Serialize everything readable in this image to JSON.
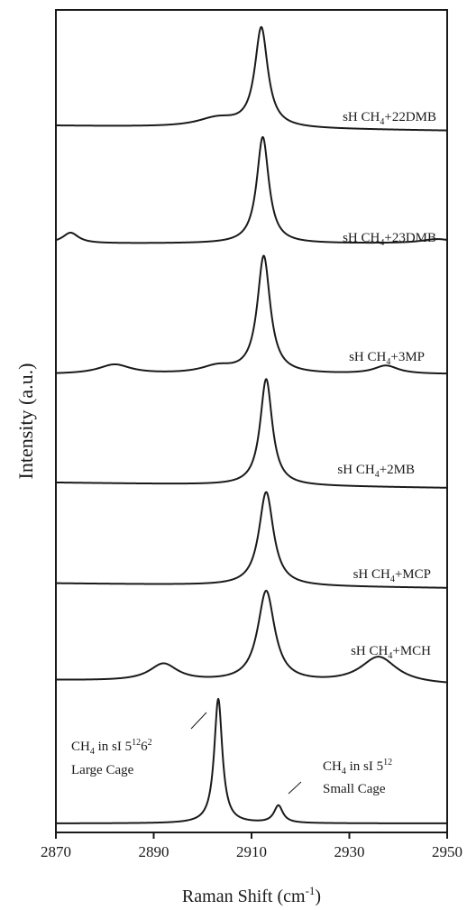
{
  "chart_data": {
    "type": "line",
    "xlabel": "Raman Shift (cm",
    "xlabel_sup": "-1",
    "xlabel_tail": ")",
    "ylabel": "Intensity (a.u.)",
    "xlim": [
      2870,
      2950
    ],
    "x_ticks": [
      "2870",
      "2890",
      "2910",
      "2930",
      "2950"
    ],
    "series": [
      {
        "label_pre": "sH CH",
        "label_sub": "4",
        "label_post": "+22DMB",
        "baseline_left": 0.06,
        "baseline_right": 0.01,
        "peaks": [
          {
            "x": 2912.0,
            "h": 1.0,
            "w": 1.6
          },
          {
            "x": 2903.0,
            "h": 0.09,
            "w": 5.0
          }
        ]
      },
      {
        "label_pre": "sH CH",
        "label_sub": "4",
        "label_post": "+23DMB",
        "baseline_left": 0.0,
        "baseline_right": 0.0,
        "peaks": [
          {
            "x": 2912.3,
            "h": 1.0,
            "w": 1.5
          },
          {
            "x": 2873.0,
            "h": 0.1,
            "w": 2.0
          },
          {
            "x": 2948.0,
            "h": 0.04,
            "w": 4.0
          }
        ]
      },
      {
        "label_pre": "sH CH",
        "label_sub": "4",
        "label_post": "+3MP",
        "baseline_left": 0.0,
        "baseline_right": 0.0,
        "peaks": [
          {
            "x": 2912.5,
            "h": 1.0,
            "w": 1.6
          },
          {
            "x": 2882.0,
            "h": 0.08,
            "w": 4.0
          },
          {
            "x": 2903.0,
            "h": 0.06,
            "w": 4.0
          },
          {
            "x": 2937.5,
            "h": 0.07,
            "w": 3.0
          }
        ]
      },
      {
        "label_pre": "sH CH",
        "label_sub": "4",
        "label_post": "+2MB",
        "baseline_left": 0.05,
        "baseline_right": 0.0,
        "peaks": [
          {
            "x": 2913.0,
            "h": 1.0,
            "w": 1.5
          }
        ]
      },
      {
        "label_pre": "sH CH",
        "label_sub": "4",
        "label_post": "+MCP",
        "baseline_left": 0.05,
        "baseline_right": 0.0,
        "peaks": [
          {
            "x": 2913.0,
            "h": 1.0,
            "w": 1.8
          }
        ]
      },
      {
        "label_pre": "sH CH",
        "label_sub": "4",
        "label_post": "+MCH",
        "baseline_left": 0.1,
        "baseline_right": 0.05,
        "peaks": [
          {
            "x": 2913.0,
            "h": 0.95,
            "w": 2.1
          },
          {
            "x": 2892.0,
            "h": 0.18,
            "w": 3.5
          },
          {
            "x": 2936.0,
            "h": 0.28,
            "w": 4.5
          }
        ]
      },
      {
        "label_pre": "",
        "label_sub": "",
        "label_post": "",
        "baseline_left": 0.0,
        "baseline_right": 0.0,
        "peaks": [
          {
            "x": 2903.2,
            "h": 1.0,
            "w": 1.0
          },
          {
            "x": 2915.5,
            "h": 0.14,
            "w": 1.1
          }
        ]
      }
    ],
    "annotations": [
      {
        "line1_pre": "CH",
        "line1_sub": "4",
        "line1_mid": " in sI 5",
        "line1_sup1": "12",
        "line1_post": "6",
        "line1_sup2": "2",
        "line2": "Large Cage"
      },
      {
        "line1_pre": "CH",
        "line1_sub": "4",
        "line1_mid": " in sI 5",
        "line1_sup1": "12",
        "line1_post": "",
        "line1_sup2": "",
        "line2": "Small Cage"
      }
    ]
  }
}
